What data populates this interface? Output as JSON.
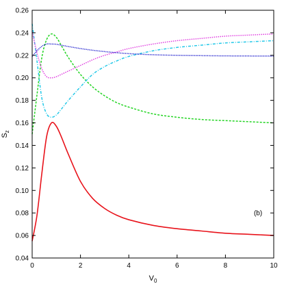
{
  "chart_data": {
    "type": "line",
    "title": "",
    "xlabel": "V",
    "xlabel_subscript": "0",
    "ylabel": "S",
    "ylabel_subscript": "z",
    "xlim": [
      0,
      10
    ],
    "ylim": [
      0.04,
      0.26
    ],
    "xticks": [
      0,
      2,
      4,
      6,
      8,
      10
    ],
    "yticks": [
      0.04,
      0.06,
      0.08,
      0.1,
      0.12,
      0.14,
      0.16,
      0.18,
      0.2,
      0.22,
      0.24,
      0.26
    ],
    "xtick_labels": [
      "0",
      "2",
      "4",
      "6",
      "8",
      "10"
    ],
    "ytick_labels": [
      "0.04",
      "0.06",
      "0.08",
      "0.10",
      "0.12",
      "0.14",
      "0.16",
      "0.18",
      "0.20",
      "0.22",
      "0.24",
      "0.26"
    ],
    "grid": false,
    "annotation": "(b)",
    "x": [
      0,
      0.2,
      0.4,
      0.6,
      0.8,
      1.0,
      1.2,
      1.5,
      2,
      2.5,
      3,
      3.5,
      4,
      5,
      6,
      7,
      8,
      9,
      10
    ],
    "series": [
      {
        "color": "#e8121a",
        "style": "solid",
        "values": [
          0.055,
          0.078,
          0.115,
          0.148,
          0.16,
          0.157,
          0.148,
          0.132,
          0.108,
          0.093,
          0.084,
          0.078,
          0.074,
          0.069,
          0.066,
          0.064,
          0.062,
          0.061,
          0.06
        ]
      },
      {
        "color": "#22d422",
        "style": "dashed",
        "values": [
          0.15,
          0.185,
          0.218,
          0.234,
          0.239,
          0.236,
          0.229,
          0.218,
          0.203,
          0.192,
          0.184,
          0.178,
          0.174,
          0.168,
          0.165,
          0.163,
          0.162,
          0.161,
          0.16
        ]
      },
      {
        "color": "#22c8e8",
        "style": "dash-dot",
        "values": [
          0.248,
          0.215,
          0.182,
          0.168,
          0.165,
          0.167,
          0.172,
          0.18,
          0.192,
          0.203,
          0.21,
          0.215,
          0.219,
          0.224,
          0.227,
          0.229,
          0.231,
          0.232,
          0.233
        ]
      },
      {
        "color": "#e040e0",
        "style": "dotted",
        "values": [
          0.241,
          0.222,
          0.208,
          0.201,
          0.2,
          0.201,
          0.203,
          0.206,
          0.211,
          0.216,
          0.22,
          0.223,
          0.226,
          0.23,
          0.233,
          0.235,
          0.237,
          0.238,
          0.239
        ]
      },
      {
        "color": "#1a1acc",
        "style": "dense-dotted",
        "values": [
          0.219,
          0.224,
          0.228,
          0.23,
          0.23,
          0.2298,
          0.229,
          0.2278,
          0.226,
          0.2245,
          0.2233,
          0.2223,
          0.2215,
          0.2205,
          0.22,
          0.2197,
          0.2195,
          0.2194,
          0.2193
        ]
      }
    ]
  }
}
